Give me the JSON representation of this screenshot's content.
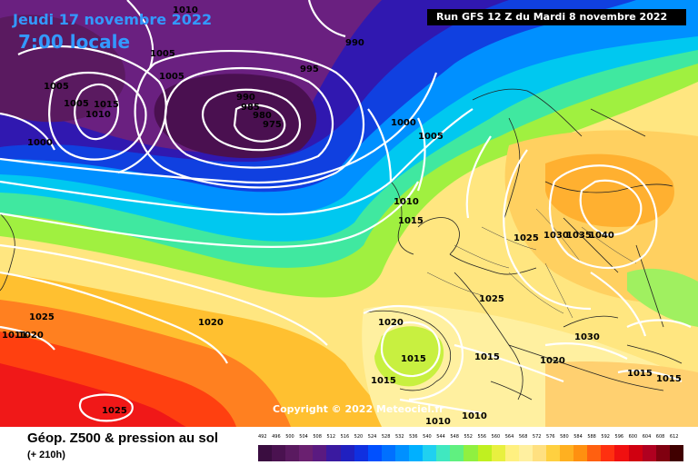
{
  "header": {
    "date": "Jeudi 17 novembre 2022",
    "time": "7:00 locale",
    "run": "Run GFS 12 Z du Mardi 8 novembre 2022"
  },
  "copyright": "Copyright © 2022 Meteociel.fr",
  "footer": {
    "product": "Géop. Z500 & pression au sol",
    "leadtime": "(+ 210h)"
  },
  "scale": {
    "values": [
      "492",
      "496",
      "500",
      "504",
      "508",
      "512",
      "516",
      "520",
      "524",
      "528",
      "532",
      "536",
      "540",
      "544",
      "548",
      "552",
      "556",
      "560",
      "564",
      "568",
      "572",
      "576",
      "580",
      "584",
      "588",
      "592",
      "596",
      "600",
      "604",
      "608",
      "612"
    ],
    "colors": [
      "#3a0d40",
      "#4a1250",
      "#5a1a60",
      "#6a2070",
      "#5a1a80",
      "#3a1aa0",
      "#2020c0",
      "#1030e0",
      "#0050ff",
      "#0070ff",
      "#0090ff",
      "#00b0ff",
      "#20d0f0",
      "#40e8c0",
      "#60f080",
      "#90f040",
      "#c0f020",
      "#e8f040",
      "#fff080",
      "#fff0a0",
      "#ffe080",
      "#ffd040",
      "#ffb020",
      "#ff9010",
      "#ff6010",
      "#ff3010",
      "#f01010",
      "#d00010",
      "#b00020",
      "#800010",
      "#400000"
    ]
  },
  "isobars": [
    "1010",
    "990",
    "1005",
    "1005",
    "1005",
    "995",
    "1005",
    "1015",
    "1010",
    "990",
    "985",
    "980",
    "975",
    "1000",
    "1005",
    "1000",
    "1010",
    "1015",
    "1025",
    "1030",
    "1035",
    "1040",
    "1025",
    "1025",
    "1020",
    "1020",
    "1011",
    "1020",
    "1015",
    "1015",
    "1030",
    "1020",
    "1015",
    "1015",
    "1025",
    "1010",
    "1010",
    "1015"
  ]
}
